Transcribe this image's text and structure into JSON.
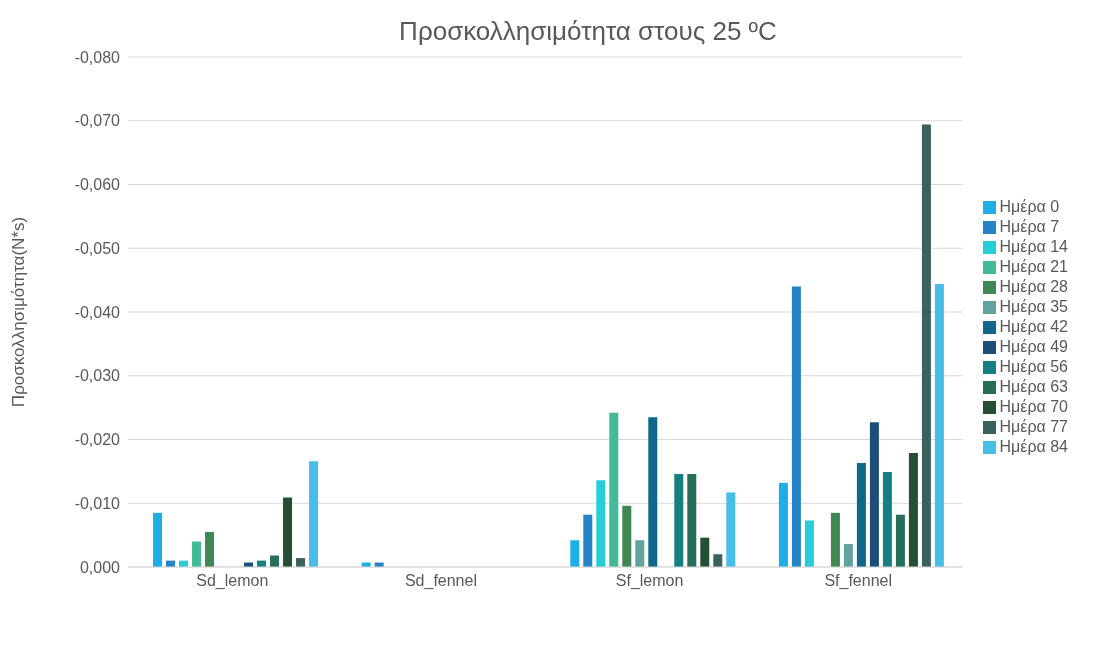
{
  "chart_data": {
    "type": "bar",
    "title": "Προσκολλησιμότητα στους 25 ºC",
    "ylabel": "Προσκολλησιμότητα(N*s)",
    "categories": [
      "Sd_lemon",
      "Sd_fennel",
      "Sf_lemon",
      "Sf_fennel"
    ],
    "series": [
      {
        "name": "Ημέρα 0",
        "color": "#1eaee6",
        "values": [
          -0.0085,
          -0.0007,
          -0.0042,
          -0.0132
        ]
      },
      {
        "name": "Ημέρα 7",
        "color": "#2683c6",
        "values": [
          -0.001,
          -0.0007,
          -0.0082,
          -0.044
        ]
      },
      {
        "name": "Ημέρα 14",
        "color": "#27ced7",
        "values": [
          -0.001,
          null,
          -0.0136,
          -0.0073
        ]
      },
      {
        "name": "Ημέρα 21",
        "color": "#42ba97",
        "values": [
          -0.004,
          null,
          -0.0242,
          null
        ]
      },
      {
        "name": "Ημέρα 28",
        "color": "#3e8853",
        "values": [
          -0.0055,
          null,
          -0.0096,
          -0.0085
        ]
      },
      {
        "name": "Ημέρα 35",
        "color": "#62a39f",
        "values": [
          null,
          null,
          -0.0042,
          -0.0036
        ]
      },
      {
        "name": "Ημέρα 42",
        "color": "#10678a",
        "values": [
          null,
          null,
          -0.0235,
          -0.0163
        ]
      },
      {
        "name": "Ημέρα 49",
        "color": "#1c4e78",
        "values": [
          -0.0007,
          null,
          null,
          -0.0227
        ]
      },
      {
        "name": "Ημέρα 56",
        "color": "#157f82",
        "values": [
          -0.001,
          null,
          -0.0146,
          -0.0149
        ]
      },
      {
        "name": "Ημέρα 63",
        "color": "#276e5a",
        "values": [
          -0.0018,
          null,
          -0.0146,
          -0.0082
        ]
      },
      {
        "name": "Ημέρα 70",
        "color": "#254f33",
        "values": [
          -0.0109,
          null,
          -0.0046,
          -0.0179
        ]
      },
      {
        "name": "Ημέρα 77",
        "color": "#3a625c",
        "values": [
          -0.0014,
          null,
          -0.002,
          -0.0694
        ]
      },
      {
        "name": "Ημέρα 84",
        "color": "#48bde8",
        "values": [
          -0.0166,
          null,
          -0.0117,
          -0.0444
        ]
      }
    ],
    "ylim": [
      0,
      -0.08
    ],
    "yticks": [
      {
        "value": 0,
        "label": "0,000"
      },
      {
        "value": -0.01,
        "label": "-0,010"
      },
      {
        "value": -0.02,
        "label": "-0,020"
      },
      {
        "value": -0.03,
        "label": "-0,030"
      },
      {
        "value": -0.04,
        "label": "-0,040"
      },
      {
        "value": -0.05,
        "label": "-0,050"
      },
      {
        "value": -0.06,
        "label": "-0,060"
      },
      {
        "value": -0.07,
        "label": "-0,070"
      },
      {
        "value": -0.08,
        "label": "-0,080"
      }
    ],
    "grid": "y",
    "legend": "right"
  }
}
